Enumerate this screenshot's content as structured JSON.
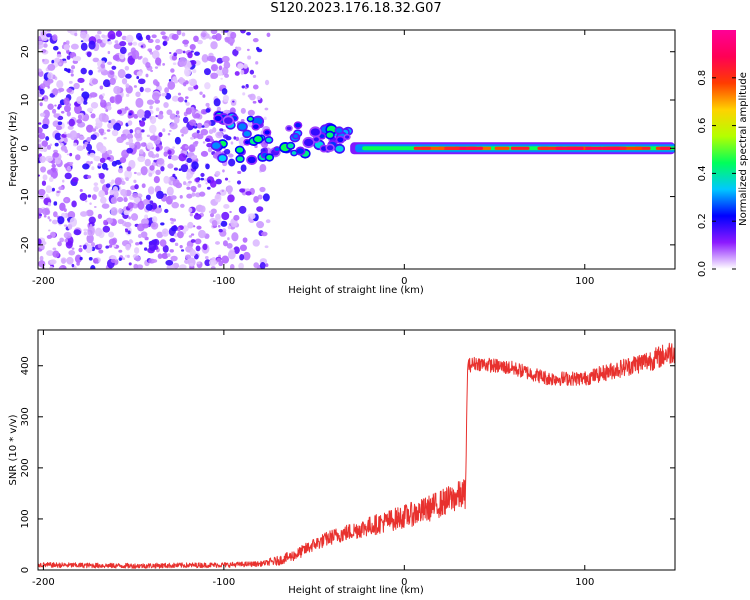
{
  "figure": {
    "title": "S120.2023.176.18.32.G07"
  },
  "chart_data": [
    {
      "type": "heatmap",
      "title": "",
      "xlabel": "Height of straight line (km)",
      "ylabel": "Frequency (Hz)",
      "xlim": [
        -203,
        150
      ],
      "ylim": [
        -25,
        24.5
      ],
      "xticks": [
        -200,
        -100,
        0,
        100
      ],
      "yticks": [
        -20,
        -10,
        0,
        10,
        20
      ],
      "grid": false,
      "colorbar": {
        "label": "Normalized spectral amplitude",
        "range": [
          0.0,
          1.0
        ],
        "ticks": [
          0.0,
          0.2,
          0.4,
          0.6,
          0.8
        ],
        "colormap": [
          "#ffffff",
          "#8c1aff",
          "#0000ff",
          "#00c8ff",
          "#00ff5a",
          "#b4ff00",
          "#ffd200",
          "#ff3c00",
          "#ff0055",
          "#ff0096"
        ]
      },
      "features": [
        {
          "name": "noise",
          "x_range": [
            -203,
            -75
          ],
          "y_range": [
            -25,
            24.5
          ],
          "amplitude": 0.1
        },
        {
          "name": "scattered blobs",
          "x_range": [
            -105,
            -30
          ],
          "y_range": [
            -5,
            10
          ],
          "amplitude": 0.3
        },
        {
          "name": "tone",
          "x_range": [
            -30,
            150
          ],
          "frequency": 0,
          "amplitude": 0.85
        }
      ]
    },
    {
      "type": "line",
      "title": "",
      "xlabel": "Height of straight line (km)",
      "ylabel": "SNR (10 * v/v)",
      "xlim": [
        -203,
        150
      ],
      "ylim": [
        0,
        470
      ],
      "xticks": [
        -200,
        -100,
        0,
        100
      ],
      "yticks": [
        0,
        100,
        200,
        300,
        400
      ],
      "grid": false,
      "series": [
        {
          "color": "#e8312e",
          "x": [
            -203,
            -150,
            -100,
            -80,
            -70,
            -60,
            -50,
            -40,
            -30,
            -20,
            -10,
            0,
            10,
            20,
            30,
            34,
            35,
            40,
            60,
            80,
            100,
            120,
            140,
            150
          ],
          "y": [
            10,
            8,
            10,
            12,
            18,
            30,
            50,
            65,
            75,
            85,
            95,
            105,
            115,
            130,
            145,
            150,
            400,
            405,
            395,
            375,
            375,
            395,
            415,
            430
          ]
        }
      ]
    }
  ]
}
